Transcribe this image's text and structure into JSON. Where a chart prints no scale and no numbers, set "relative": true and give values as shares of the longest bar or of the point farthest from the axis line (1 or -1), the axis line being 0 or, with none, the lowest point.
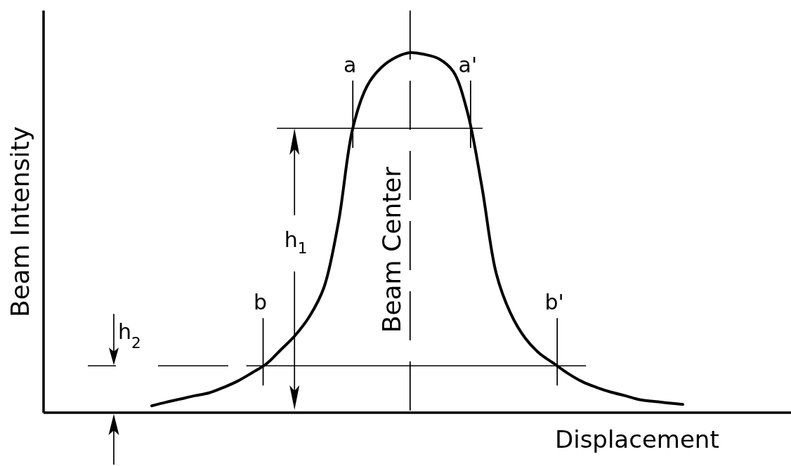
{
  "chart_data": {
    "type": "line",
    "xlabel": "Displacement",
    "ylabel": "Beam Intensity",
    "relative": true,
    "color": "#000000",
    "categories": [
      null,
      null,
      null,
      null,
      null,
      null,
      null,
      null,
      null,
      null,
      null,
      null,
      null,
      null,
      null,
      null,
      null,
      null,
      null,
      null,
      null,
      null,
      null,
      null,
      null,
      null,
      null,
      null,
      null,
      null,
      null,
      null,
      null,
      null,
      null,
      null,
      null,
      null
    ],
    "values": [
      0.019,
      0.029,
      0.038,
      0.047,
      0.055,
      0.07,
      0.088,
      0.111,
      0.136,
      0.175,
      0.215,
      0.268,
      0.348,
      0.527,
      0.789,
      0.907,
      0.959,
      0.987,
      1,
      0.995,
      0.983,
      0.948,
      0.834,
      0.628,
      0.387,
      0.276,
      0.208,
      0.165,
      0.137,
      0.109,
      0.086,
      0.07,
      0.057,
      0.047,
      0.036,
      0.031,
      0.027,
      0.023
    ],
    "ref_lines": [
      {
        "axis": "y",
        "value": 0.79
      },
      {
        "axis": "y",
        "value": 0.13
      },
      {
        "axis": "x",
        "label": "Beam Center",
        "line_style": "dashed"
      }
    ],
    "annotations": [
      {
        "text": "a",
        "y": 0.79
      },
      {
        "text": "a'",
        "y": 0.79
      },
      {
        "text": "b",
        "y": 0.13
      },
      {
        "text": "b'",
        "y": 0.13
      },
      "h$_{1}$",
      "h$_{2}$"
    ]
  }
}
